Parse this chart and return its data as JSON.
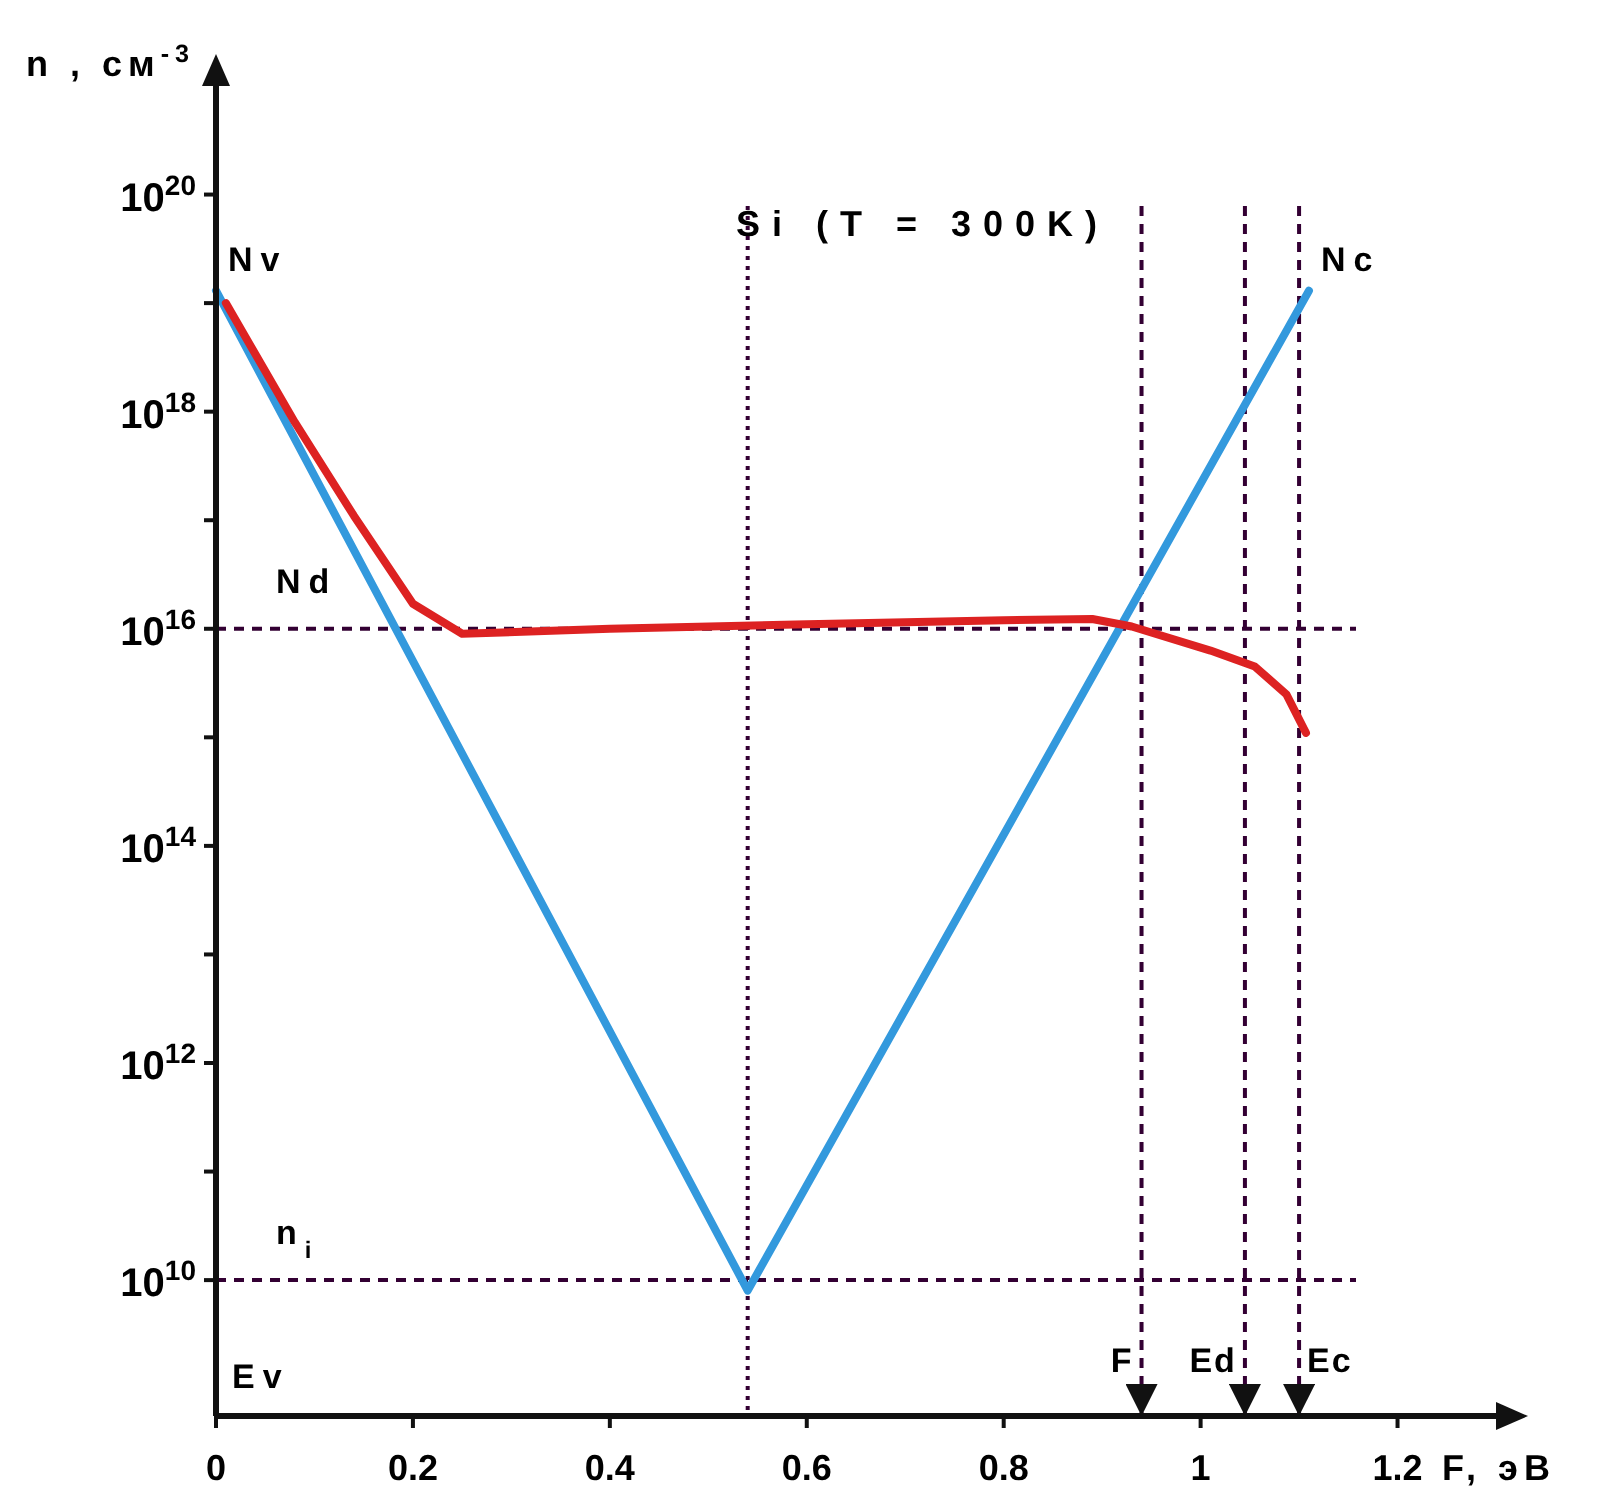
{
  "chart_data": {
    "type": "line",
    "title": "Si (T = 300K)",
    "xlabel": "F, эВ",
    "ylabel": "n , см$^{-3}$",
    "log": "y",
    "grid": false,
    "line_style": "solid",
    "xlim": [
      0,
      1.3
    ],
    "xticks": [
      0,
      0.2,
      0.4,
      0.6,
      0.8,
      1.0,
      1.2
    ],
    "ylim": [
      560000000.0,
      1e+21
    ],
    "yticks": [
      {
        "value": 10000000000.0,
        "label": "10$^{10}$"
      },
      {
        "value": 100000000000.0,
        "label": null
      },
      {
        "value": 1000000000000.0,
        "label": "10$^{12}$"
      },
      {
        "value": 10000000000000.0,
        "label": null
      },
      {
        "value": 100000000000000.0,
        "label": "10$^{14}$"
      },
      {
        "value": 1000000000000000.0,
        "label": null
      },
      {
        "value": 1e+16,
        "label": "10$^{16}$"
      },
      {
        "value": 1e+17,
        "label": null
      },
      {
        "value": 1e+18,
        "label": "10$^{18}$"
      },
      {
        "value": 1e+19,
        "label": null
      },
      {
        "value": 1e+20,
        "label": "10$^{20}$"
      }
    ],
    "series": [
      {
        "color": "#3399dd",
        "x": [
          0,
          0.54,
          1.11
        ],
        "values": [
          1.3e+19,
          8000000000.0,
          1.3e+19
        ]
      },
      {
        "color": "#dd2222",
        "x": [
          0.01,
          0.08,
          0.14,
          0.2,
          0.25,
          0.4,
          0.6,
          0.8,
          0.89,
          0.93,
          1.01,
          1.055,
          1.087,
          1.107
        ],
        "values": [
          1e+19,
          8e+17,
          1.1e+17,
          1.7e+16,
          9000000000000000.0,
          1e+16,
          1.1e+16,
          1.2e+16,
          1.23e+16,
          1.05e+16,
          6300000000000000.0,
          4500000000000000.0,
          2500000000000000.0,
          1100000000000000.0
        ]
      }
    ],
    "ref_lines": [
      {
        "axis": "y",
        "value": 1e+16,
        "label": "Nd",
        "color": "#330033",
        "line_style": "dashed"
      },
      {
        "axis": "y",
        "value": 10000000000.0,
        "label": "n$_{i}$",
        "color": "#330033",
        "line_style": "dashed"
      },
      {
        "axis": "x",
        "value": 0.54,
        "label": null,
        "color": "#330033",
        "line_style": "dotted"
      },
      {
        "axis": "x",
        "value": 0.94,
        "label": "F",
        "color": "#330033",
        "line_style": "dashed"
      },
      {
        "axis": "x",
        "value": 1.045,
        "label": "Ed",
        "color": "#330033",
        "line_style": "dashed"
      },
      {
        "axis": "x",
        "value": 1.1,
        "label": "Ec",
        "color": "#330033",
        "line_style": "dashed"
      }
    ],
    "annotations": [
      {
        "text": "Nv",
        "x": 0,
        "y": 1.3e+19
      },
      {
        "text": "Nc",
        "x": 1.11,
        "y": 1.3e+19
      },
      "Ev"
    ]
  }
}
